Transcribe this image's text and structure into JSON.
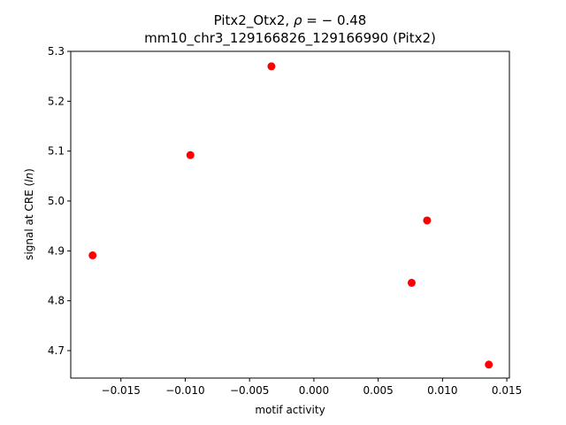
{
  "chart_data": {
    "type": "scatter",
    "title_line1_prefix": "Pitx2_Otx2, ",
    "title_line1_rho": "ρ",
    "title_line1_value": " = − 0.48",
    "title_line2": "mm10_chr3_129166826_129166990 (Pitx2)",
    "xlabel": "motif activity",
    "ylabel_prefix": "signal at CRE (",
    "ylabel_italic": "ln",
    "ylabel_suffix": ")",
    "xlim": [
      -0.0189,
      0.0152
    ],
    "ylim": [
      4.645,
      5.3
    ],
    "xticks": [
      {
        "value": -0.015,
        "label": "−0.015"
      },
      {
        "value": -0.01,
        "label": "−0.010"
      },
      {
        "value": -0.005,
        "label": "−0.005"
      },
      {
        "value": 0.0,
        "label": "0.000"
      },
      {
        "value": 0.005,
        "label": "0.005"
      },
      {
        "value": 0.01,
        "label": "0.010"
      },
      {
        "value": 0.015,
        "label": "0.015"
      }
    ],
    "yticks": [
      {
        "value": 4.7,
        "label": "4.7"
      },
      {
        "value": 4.8,
        "label": "4.8"
      },
      {
        "value": 4.9,
        "label": "4.9"
      },
      {
        "value": 5.0,
        "label": "5.0"
      },
      {
        "value": 5.1,
        "label": "5.1"
      },
      {
        "value": 5.2,
        "label": "5.2"
      },
      {
        "value": 5.3,
        "label": "5.3"
      }
    ],
    "points": [
      {
        "x": -0.0172,
        "y": 4.891
      },
      {
        "x": -0.0096,
        "y": 5.092
      },
      {
        "x": -0.0033,
        "y": 5.27
      },
      {
        "x": 0.0076,
        "y": 4.836
      },
      {
        "x": 0.0088,
        "y": 4.961
      },
      {
        "x": 0.0136,
        "y": 4.672
      }
    ],
    "marker_color": "#ff0000",
    "grid": false,
    "legend": "none"
  }
}
